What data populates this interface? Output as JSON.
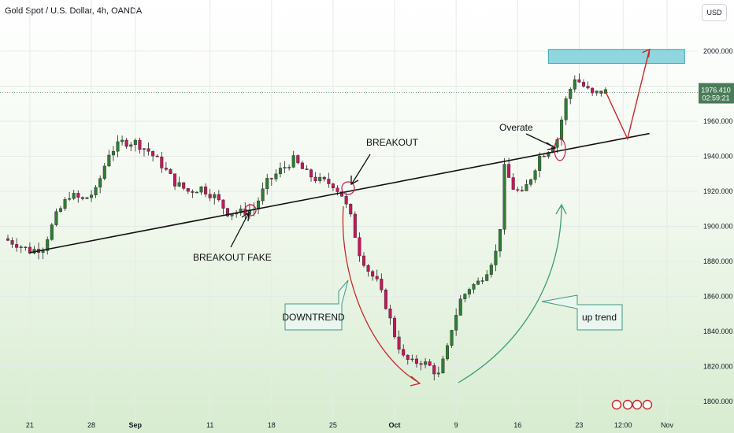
{
  "header": {
    "title": "Gold Spot / U.S. Dollar, 4h, OANDA",
    "currency": "USD"
  },
  "price_tag": {
    "price": "1976.410",
    "countdown": "02:59:21"
  },
  "annotations": {
    "breakout": "BREAKOUT",
    "breakout_fake": "BREAKOUT FAKE",
    "overate": "Overate",
    "downtrend": "DOWNTREND",
    "uptrend": "up trend"
  },
  "colors": {
    "up": "#2e7d32",
    "down": "#c2185b",
    "trendline": "#111111",
    "target_zone": "#8fd6df",
    "projection": "#c62828"
  },
  "chart_data": {
    "type": "candlestick",
    "title": "Gold Spot / U.S. Dollar, 4h, OANDA",
    "y_axis": {
      "range": [
        1795,
        2012
      ],
      "ticks": [
        "1800.000",
        "1820.000",
        "1840.000",
        "1860.000",
        "1880.000",
        "1900.000",
        "1920.000",
        "1940.000",
        "1960.000",
        "1980.000",
        "2000.000"
      ]
    },
    "x_axis": {
      "ticks": [
        {
          "label": "21",
          "index": 5
        },
        {
          "label": "28",
          "index": 19
        },
        {
          "label": "Sep",
          "index": 29
        },
        {
          "label": "11",
          "index": 46
        },
        {
          "label": "18",
          "index": 60
        },
        {
          "label": "25",
          "index": 74
        },
        {
          "label": "Oct",
          "index": 88
        },
        {
          "label": "9",
          "index": 102
        },
        {
          "label": "16",
          "index": 116
        },
        {
          "label": "23",
          "index": 130
        },
        {
          "label": "12:00",
          "index": 140
        },
        {
          "label": "Nov",
          "index": 150
        }
      ]
    },
    "path": [
      [
        0,
        1893
      ],
      [
        3,
        1890
      ],
      [
        6,
        1886
      ],
      [
        9,
        1888
      ],
      [
        12,
        1906
      ],
      [
        15,
        1918
      ],
      [
        18,
        1915
      ],
      [
        21,
        1920
      ],
      [
        24,
        1942
      ],
      [
        27,
        1948
      ],
      [
        30,
        1948
      ],
      [
        33,
        1943
      ],
      [
        36,
        1935
      ],
      [
        39,
        1925
      ],
      [
        42,
        1920
      ],
      [
        45,
        1922
      ],
      [
        48,
        1917
      ],
      [
        51,
        1908
      ],
      [
        54,
        1908
      ],
      [
        57,
        1910
      ],
      [
        60,
        1925
      ],
      [
        63,
        1932
      ],
      [
        66,
        1938
      ],
      [
        69,
        1930
      ],
      [
        72,
        1926
      ],
      [
        75,
        1924
      ],
      [
        77,
        1918
      ],
      [
        79,
        1905
      ],
      [
        81,
        1885
      ],
      [
        83,
        1875
      ],
      [
        85,
        1868
      ],
      [
        87,
        1855
      ],
      [
        89,
        1838
      ],
      [
        91,
        1825
      ],
      [
        93,
        1822
      ],
      [
        95,
        1823
      ],
      [
        97,
        1820
      ],
      [
        99,
        1815
      ],
      [
        101,
        1830
      ],
      [
        102,
        1842
      ],
      [
        104,
        1858
      ],
      [
        106,
        1865
      ],
      [
        108,
        1868
      ],
      [
        110,
        1875
      ],
      [
        112,
        1885
      ],
      [
        113,
        1900
      ],
      [
        114,
        1933
      ],
      [
        116,
        1922
      ],
      [
        118,
        1918
      ],
      [
        120,
        1928
      ],
      [
        122,
        1940
      ],
      [
        124,
        1944
      ],
      [
        126,
        1950
      ],
      [
        128,
        1972
      ],
      [
        130,
        1985
      ],
      [
        132,
        1980
      ],
      [
        134,
        1975
      ],
      [
        136,
        1977
      ]
    ],
    "trendline": {
      "from": [
        5,
        1885
      ],
      "to": [
        146,
        1953
      ]
    },
    "target_zone": {
      "from_index": 123,
      "to_index": 154,
      "low": 1993,
      "high": 2001
    },
    "projection": [
      [
        136,
        1977
      ],
      [
        141,
        1950
      ],
      [
        146,
        2001
      ]
    ]
  }
}
